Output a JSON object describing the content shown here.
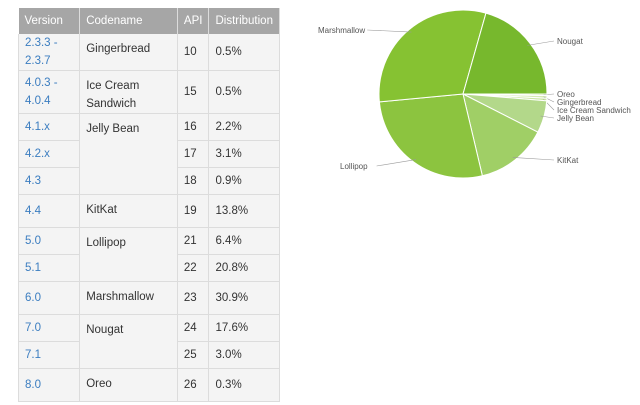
{
  "table": {
    "headers": [
      "Version",
      "Codename",
      "API",
      "Distribution"
    ],
    "rows": [
      {
        "version": "2.3.3 - 2.3.7",
        "codename": "Gingerbread",
        "api": "10",
        "distribution": "0.5%"
      },
      {
        "version": "4.0.3 - 4.0.4",
        "codename": "Ice Cream Sandwich",
        "api": "15",
        "distribution": "0.5%"
      },
      {
        "version": "4.1.x",
        "codename": "Jelly Bean",
        "api": "16",
        "distribution": "2.2%"
      },
      {
        "version": "4.2.x",
        "codename": "",
        "api": "17",
        "distribution": "3.1%"
      },
      {
        "version": "4.3",
        "codename": "",
        "api": "18",
        "distribution": "0.9%"
      },
      {
        "version": "4.4",
        "codename": "KitKat",
        "api": "19",
        "distribution": "13.8%"
      },
      {
        "version": "5.0",
        "codename": "Lollipop",
        "api": "21",
        "distribution": "6.4%"
      },
      {
        "version": "5.1",
        "codename": "",
        "api": "22",
        "distribution": "20.8%"
      },
      {
        "version": "6.0",
        "codename": "Marshmallow",
        "api": "23",
        "distribution": "30.9%"
      },
      {
        "version": "7.0",
        "codename": "Nougat",
        "api": "24",
        "distribution": "17.6%"
      },
      {
        "version": "7.1",
        "codename": "",
        "api": "25",
        "distribution": "3.0%"
      },
      {
        "version": "8.0",
        "codename": "Oreo",
        "api": "26",
        "distribution": "0.3%"
      }
    ]
  },
  "chart_data": {
    "type": "pie",
    "slices": [
      {
        "label": "Oreo",
        "value": 0.3,
        "color": "#cde6a4"
      },
      {
        "label": "Gingerbread",
        "value": 0.5,
        "color": "#d5eab3"
      },
      {
        "label": "Ice Cream Sandwich",
        "value": 0.5,
        "color": "#cbe5a3"
      },
      {
        "label": "Jelly Bean",
        "value": 6.2,
        "color": "#b3d88a"
      },
      {
        "label": "KitKat",
        "value": 13.8,
        "color": "#a0cf66"
      },
      {
        "label": "Lollipop",
        "value": 27.2,
        "color": "#8cc43f"
      },
      {
        "label": "Marshmallow",
        "value": 30.9,
        "color": "#86c232"
      },
      {
        "label": "Nougat",
        "value": 20.6,
        "color": "#77b82d"
      }
    ],
    "label_color": "#555555",
    "line_color": "#9a9a9a"
  }
}
